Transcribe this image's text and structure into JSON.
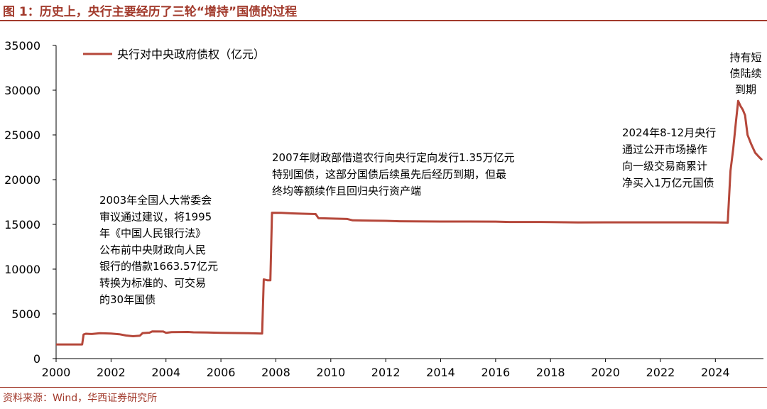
{
  "title": "图 1：历史上，央行主要经历了三轮“增持”国债的过程",
  "source": "资料来源：Wind，华西证券研究所",
  "colors": {
    "accent": "#a23a2c",
    "line": "#b5473a",
    "text": "#000000",
    "axis": "#000000"
  },
  "chart_data": {
    "type": "line",
    "xlim": [
      2000,
      2025.75
    ],
    "ylim": [
      0,
      35000
    ],
    "xticks": [
      2000,
      2002,
      2004,
      2006,
      2008,
      2010,
      2012,
      2014,
      2016,
      2018,
      2020,
      2022,
      2024
    ],
    "yticks": [
      0,
      5000,
      10000,
      15000,
      20000,
      25000,
      30000,
      35000
    ],
    "legend": {
      "label": "央行对中央政府债权（亿元）",
      "position": "top-left"
    },
    "grid": false,
    "series": [
      {
        "name": "央行对中央政府债权（亿元）",
        "points": [
          [
            2000.0,
            1580
          ],
          [
            2000.95,
            1580
          ],
          [
            2001.0,
            2700
          ],
          [
            2001.08,
            2780
          ],
          [
            2001.3,
            2750
          ],
          [
            2001.6,
            2830
          ],
          [
            2002.0,
            2800
          ],
          [
            2002.3,
            2720
          ],
          [
            2002.55,
            2580
          ],
          [
            2002.8,
            2500
          ],
          [
            2003.05,
            2560
          ],
          [
            2003.15,
            2850
          ],
          [
            2003.4,
            2900
          ],
          [
            2003.5,
            3030
          ],
          [
            2003.9,
            3020
          ],
          [
            2004.0,
            2880
          ],
          [
            2004.2,
            2960
          ],
          [
            2004.8,
            2980
          ],
          [
            2005.0,
            2940
          ],
          [
            2005.5,
            2920
          ],
          [
            2006.0,
            2870
          ],
          [
            2006.5,
            2860
          ],
          [
            2007.0,
            2840
          ],
          [
            2007.5,
            2800
          ],
          [
            2007.56,
            8850
          ],
          [
            2007.7,
            8750
          ],
          [
            2007.8,
            8750
          ],
          [
            2007.86,
            16300
          ],
          [
            2008.2,
            16290
          ],
          [
            2008.6,
            16230
          ],
          [
            2009.0,
            16190
          ],
          [
            2009.45,
            16150
          ],
          [
            2009.55,
            15700
          ],
          [
            2010.0,
            15650
          ],
          [
            2010.6,
            15600
          ],
          [
            2010.8,
            15450
          ],
          [
            2011.5,
            15420
          ],
          [
            2012.0,
            15400
          ],
          [
            2012.5,
            15350
          ],
          [
            2013.0,
            15330
          ],
          [
            2014.0,
            15320
          ],
          [
            2015.0,
            15320
          ],
          [
            2016.0,
            15310
          ],
          [
            2016.5,
            15270
          ],
          [
            2017.0,
            15270
          ],
          [
            2018.0,
            15260
          ],
          [
            2019.0,
            15220
          ],
          [
            2020.0,
            15230
          ],
          [
            2021.0,
            15230
          ],
          [
            2022.0,
            15230
          ],
          [
            2023.0,
            15230
          ],
          [
            2024.0,
            15220
          ],
          [
            2024.45,
            15200
          ],
          [
            2024.55,
            21000
          ],
          [
            2024.65,
            23500
          ],
          [
            2024.75,
            26500
          ],
          [
            2024.83,
            28800
          ],
          [
            2024.92,
            28200
          ],
          [
            2025.0,
            27800
          ],
          [
            2025.08,
            27200
          ],
          [
            2025.17,
            25000
          ],
          [
            2025.3,
            24000
          ],
          [
            2025.45,
            23000
          ],
          [
            2025.6,
            22500
          ],
          [
            2025.7,
            22200
          ]
        ]
      }
    ],
    "annotations": [
      {
        "lines": [
          "2003年全国人大常委会",
          "审议通过建议，将1995",
          "年《中国人民银行法》",
          "公布前中央财政向人民",
          "银行的借款1663.57亿元",
          "转换为标准的、可交易",
          "的30年国债"
        ]
      },
      {
        "lines": [
          "2007年财政部借道农行向央行定向发行1.35万亿元",
          "特别国债，这部分国债后续虽先后经历到期，但最",
          "终均等额续作且回归央行资产端"
        ]
      },
      {
        "lines": [
          "2024年8-12月央行",
          "通过公开市场操作",
          "向一级交易商累计",
          "净买入1万亿元国债"
        ]
      },
      {
        "lines": [
          "持有短",
          "债陆续",
          "到期"
        ]
      }
    ]
  }
}
